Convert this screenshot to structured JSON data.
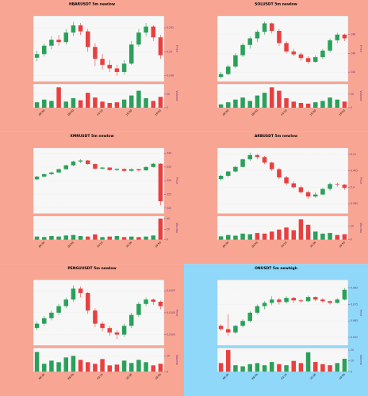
{
  "chart_data": [
    {
      "type": "candlestick",
      "title": "HBARUSDT 5m newlow",
      "ylabel": "Price",
      "y2label": "Volume",
      "background": "#f8a593",
      "up_color": "#2ca05a",
      "down_color": "#e8403f",
      "grid": true,
      "categories": [
        null,
        "09:30",
        null,
        null,
        null,
        "09:50",
        null,
        null,
        null,
        "10:10",
        null,
        null,
        null,
        "10:30",
        null,
        null,
        null,
        "10:50"
      ],
      "candles": [
        [
          0.2495,
          0.2501,
          0.2492,
          0.2498
        ],
        [
          0.2498,
          0.2507,
          0.2496,
          0.2505
        ],
        [
          0.2505,
          0.2513,
          0.2502,
          0.251
        ],
        [
          0.251,
          0.2514,
          0.2505,
          0.2508
        ],
        [
          0.2508,
          0.2519,
          0.2506,
          0.2516
        ],
        [
          0.2516,
          0.2525,
          0.2513,
          0.2522
        ],
        [
          0.2522,
          0.2524,
          0.2514,
          0.2517
        ],
        [
          0.2517,
          0.2519,
          0.25,
          0.2504
        ],
        [
          0.2504,
          0.2507,
          0.2488,
          0.2494
        ],
        [
          0.2494,
          0.2498,
          0.2485,
          0.2489
        ],
        [
          0.2489,
          0.2493,
          0.2483,
          0.2486
        ],
        [
          0.2486,
          0.2489,
          0.248,
          0.2483
        ],
        [
          0.2483,
          0.2493,
          0.2481,
          0.249
        ],
        [
          0.249,
          0.2509,
          0.2489,
          0.2506
        ],
        [
          0.2506,
          0.2519,
          0.2504,
          0.2516
        ],
        [
          0.2516,
          0.2524,
          0.2513,
          0.2521
        ],
        [
          0.2521,
          0.2522,
          0.2509,
          0.2512
        ],
        [
          0.2512,
          0.2514,
          0.2494,
          0.2497
        ]
      ],
      "volume": [
        8,
        12,
        10,
        30,
        9,
        14,
        11,
        22,
        15,
        9,
        7,
        8,
        12,
        18,
        25,
        14,
        10,
        16
      ],
      "ylim": [
        0.2475,
        0.253
      ],
      "yticks": [
        0.248,
        0.25,
        0.252
      ],
      "y2lim": [
        0,
        35
      ],
      "y2ticks": [
        0,
        20
      ]
    },
    {
      "type": "candlestick",
      "title": "SOLUSDT 5m newlow",
      "ylabel": "Price",
      "y2label": "Volume",
      "background": "#f8a593",
      "up_color": "#2ca05a",
      "down_color": "#e8403f",
      "grid": true,
      "categories": [
        null,
        "09:30",
        null,
        null,
        null,
        "09:50",
        null,
        null,
        null,
        "10:10",
        null,
        null,
        null,
        "10:30",
        null,
        null,
        null,
        "10:50"
      ],
      "candles": [
        [
          143.5,
          144.0,
          143.3,
          143.8
        ],
        [
          143.8,
          144.8,
          143.7,
          144.6
        ],
        [
          144.6,
          146.0,
          144.4,
          145.8
        ],
        [
          145.8,
          147.1,
          145.6,
          146.9
        ],
        [
          146.9,
          147.8,
          146.5,
          147.6
        ],
        [
          147.6,
          148.5,
          147.2,
          148.3
        ],
        [
          148.3,
          149.4,
          148.0,
          149.2
        ],
        [
          149.2,
          149.3,
          148.1,
          148.4
        ],
        [
          148.4,
          148.6,
          146.8,
          147.1
        ],
        [
          147.1,
          147.3,
          146.0,
          146.2
        ],
        [
          146.2,
          146.5,
          145.7,
          145.9
        ],
        [
          145.9,
          146.1,
          145.2,
          145.5
        ],
        [
          145.5,
          145.7,
          144.9,
          145.1
        ],
        [
          145.1,
          145.8,
          145.0,
          145.6
        ],
        [
          145.6,
          146.5,
          145.4,
          146.3
        ],
        [
          146.3,
          147.6,
          146.1,
          147.4
        ],
        [
          147.4,
          148.2,
          147.1,
          148.0
        ],
        [
          148.0,
          148.1,
          147.3,
          147.6
        ]
      ],
      "volume": [
        5,
        8,
        12,
        15,
        10,
        18,
        22,
        30,
        25,
        14,
        9,
        7,
        6,
        8,
        10,
        15,
        12,
        9
      ],
      "ylim": [
        143,
        150
      ],
      "yticks": [
        144,
        146,
        148
      ],
      "y2lim": [
        0,
        35
      ],
      "y2ticks": [
        0,
        20
      ]
    },
    {
      "type": "candlestick",
      "title": "XMRUSDT 5m newlow",
      "ylabel": "Price",
      "y2label": "Volume",
      "background": "#f8a593",
      "up_color": "#2ca05a",
      "down_color": "#e8403f",
      "grid": true,
      "categories": [
        null,
        "09:30",
        null,
        null,
        null,
        "09:50",
        null,
        null,
        null,
        "10:10",
        null,
        null,
        null,
        "10:30",
        null,
        null,
        null,
        "10:50"
      ],
      "candles": [
        [
          330.5,
          331.8,
          330.2,
          331.5
        ],
        [
          331.5,
          332.6,
          331.2,
          332.4
        ],
        [
          332.4,
          333.3,
          332.0,
          333.0
        ],
        [
          333.0,
          334.5,
          332.8,
          334.2
        ],
        [
          334.2,
          335.9,
          334.0,
          335.6
        ],
        [
          335.6,
          337.3,
          335.3,
          337.0
        ],
        [
          337.0,
          337.9,
          336.5,
          337.4
        ],
        [
          337.4,
          337.6,
          335.8,
          336.1
        ],
        [
          336.1,
          336.3,
          334.1,
          334.4
        ],
        [
          334.4,
          335.1,
          334.0,
          334.8
        ],
        [
          334.8,
          335.0,
          333.6,
          333.9
        ],
        [
          333.9,
          334.6,
          333.5,
          334.3
        ],
        [
          334.3,
          334.5,
          333.2,
          333.6
        ],
        [
          333.6,
          334.5,
          333.3,
          334.2
        ],
        [
          334.2,
          334.4,
          333.4,
          333.8
        ],
        [
          333.8,
          335.3,
          333.6,
          335.0
        ],
        [
          335.0,
          336.5,
          334.8,
          336.2
        ],
        [
          336.2,
          336.4,
          321.0,
          322.5
        ]
      ],
      "volume": [
        6,
        5,
        7,
        6,
        8,
        9,
        7,
        6,
        10,
        5,
        6,
        7,
        5,
        6,
        5,
        6,
        8,
        40
      ],
      "ylim": [
        318,
        342
      ],
      "yticks": [
        320,
        325,
        330,
        335,
        340
      ],
      "y2lim": [
        0,
        45
      ],
      "y2ticks": [
        0,
        20,
        40
      ]
    },
    {
      "type": "candlestick",
      "title": "ARBUSDT 5m newlow",
      "ylabel": "Price",
      "y2label": "Volume",
      "background": "#f8a593",
      "up_color": "#2ca05a",
      "down_color": "#e8403f",
      "grid": true,
      "categories": [
        null,
        "09:30",
        null,
        null,
        null,
        "09:50",
        null,
        null,
        null,
        "10:10",
        null,
        null,
        null,
        "10:30",
        null,
        null,
        null,
        "10:50"
      ],
      "candles": [
        [
          0.4025,
          0.4038,
          0.402,
          0.4035
        ],
        [
          0.4035,
          0.405,
          0.403,
          0.4048
        ],
        [
          0.4048,
          0.4065,
          0.4045,
          0.4062
        ],
        [
          0.4062,
          0.4088,
          0.406,
          0.4085
        ],
        [
          0.4085,
          0.4105,
          0.408,
          0.4098
        ],
        [
          0.4098,
          0.4101,
          0.4085,
          0.4092
        ],
        [
          0.4092,
          0.4095,
          0.407,
          0.4075
        ],
        [
          0.4075,
          0.4078,
          0.405,
          0.4055
        ],
        [
          0.4055,
          0.406,
          0.4025,
          0.403
        ],
        [
          0.403,
          0.4035,
          0.4005,
          0.4012
        ],
        [
          0.4012,
          0.4018,
          0.3995,
          0.4
        ],
        [
          0.4,
          0.4004,
          0.398,
          0.3985
        ],
        [
          0.3985,
          0.399,
          0.3965,
          0.3972
        ],
        [
          0.3972,
          0.3985,
          0.3968,
          0.3978
        ],
        [
          0.3978,
          0.3998,
          0.3975,
          0.3995
        ],
        [
          0.3995,
          0.4015,
          0.399,
          0.401
        ],
        [
          0.401,
          0.4014,
          0.4002,
          0.4008
        ],
        [
          0.4008,
          0.401,
          0.3992,
          0.3998
        ]
      ],
      "volume": [
        5,
        7,
        6,
        9,
        8,
        10,
        9,
        12,
        15,
        18,
        14,
        30,
        22,
        12,
        9,
        10,
        7,
        8
      ],
      "ylim": [
        0.392,
        0.412
      ],
      "yticks": [
        0.395,
        0.4,
        0.405,
        0.41
      ],
      "y2lim": [
        0,
        35
      ],
      "y2ticks": [
        0,
        20
      ]
    },
    {
      "type": "candlestick",
      "title": "PENGUUSDT 5m newlow",
      "ylabel": "Price",
      "y2label": "Volume",
      "background": "#f8a593",
      "up_color": "#2ca05a",
      "down_color": "#e8403f",
      "grid": true,
      "categories": [
        null,
        "09:30",
        null,
        null,
        null,
        "09:50",
        null,
        null,
        null,
        "10:10",
        null,
        null,
        null,
        "10:30",
        null,
        null,
        null,
        "10:50"
      ],
      "candles": [
        [
          0.01036,
          0.01042,
          0.01034,
          0.0104
        ],
        [
          0.0104,
          0.01047,
          0.01038,
          0.01045
        ],
        [
          0.01045,
          0.01052,
          0.01043,
          0.0105
        ],
        [
          0.0105,
          0.01058,
          0.01048,
          0.01056
        ],
        [
          0.01056,
          0.01064,
          0.01054,
          0.01062
        ],
        [
          0.01062,
          0.01075,
          0.0106,
          0.01072
        ],
        [
          0.01072,
          0.01074,
          0.01064,
          0.01068
        ],
        [
          0.01068,
          0.01069,
          0.01049,
          0.01052
        ],
        [
          0.01052,
          0.01054,
          0.01037,
          0.0104
        ],
        [
          0.0104,
          0.01042,
          0.01033,
          0.01036
        ],
        [
          0.01036,
          0.01038,
          0.01029,
          0.01032
        ],
        [
          0.01032,
          0.01034,
          0.01026,
          0.0103
        ],
        [
          0.0103,
          0.0104,
          0.01028,
          0.01038
        ],
        [
          0.01038,
          0.0105,
          0.01036,
          0.01048
        ],
        [
          0.01048,
          0.0106,
          0.01046,
          0.01058
        ],
        [
          0.01058,
          0.01064,
          0.01056,
          0.01062
        ],
        [
          0.01062,
          0.01063,
          0.01057,
          0.0106
        ],
        [
          0.0106,
          0.01061,
          0.01053,
          0.01056
        ]
      ],
      "volume": [
        25,
        10,
        14,
        12,
        18,
        20,
        15,
        12,
        10,
        16,
        8,
        9,
        14,
        11,
        15,
        12,
        8,
        10
      ],
      "ylim": [
        0.0102,
        0.0108
      ],
      "yticks": [
        0.0103,
        0.0105,
        0.0107
      ],
      "y2lim": [
        0,
        30
      ],
      "y2ticks": [
        0,
        20
      ]
    },
    {
      "type": "candlestick",
      "title": "ONUSDT 5m newhigh",
      "ylabel": "Price",
      "y2label": "Volume",
      "background": "#8fd8f9",
      "up_color": "#2ca05a",
      "down_color": "#e8403f",
      "grid": true,
      "categories": [
        null,
        "09:30",
        null,
        null,
        null,
        "09:50",
        null,
        null,
        null,
        "10:10",
        null,
        null,
        null,
        "10:30",
        null,
        null,
        null,
        "10:50"
      ],
      "candles": [
        [
          0.962,
          0.963,
          0.959,
          0.96
        ],
        [
          0.96,
          0.969,
          0.956,
          0.958
        ],
        [
          0.958,
          0.9625,
          0.957,
          0.962
        ],
        [
          0.962,
          0.966,
          0.961,
          0.965
        ],
        [
          0.965,
          0.971,
          0.964,
          0.97
        ],
        [
          0.97,
          0.975,
          0.969,
          0.974
        ],
        [
          0.974,
          0.977,
          0.972,
          0.976
        ],
        [
          0.976,
          0.98,
          0.9745,
          0.978
        ],
        [
          0.978,
          0.979,
          0.975,
          0.9765
        ],
        [
          0.9765,
          0.98,
          0.9755,
          0.979
        ],
        [
          0.979,
          0.9795,
          0.976,
          0.9775
        ],
        [
          0.9775,
          0.9785,
          0.976,
          0.977
        ],
        [
          0.977,
          0.9805,
          0.9765,
          0.9795
        ],
        [
          0.9795,
          0.98,
          0.977,
          0.978
        ],
        [
          0.978,
          0.979,
          0.976,
          0.977
        ],
        [
          0.977,
          0.9775,
          0.975,
          0.976
        ],
        [
          0.976,
          0.979,
          0.9755,
          0.978
        ],
        [
          0.978,
          0.985,
          0.9775,
          0.984
        ]
      ],
      "volume": [
        8,
        20,
        6,
        5,
        7,
        8,
        6,
        9,
        7,
        6,
        10,
        8,
        18,
        9,
        7,
        6,
        8,
        12
      ],
      "ylim": [
        0.95,
        0.99
      ],
      "yticks": [
        0.955,
        0.965,
        0.975,
        0.985
      ],
      "y2lim": [
        0,
        22
      ],
      "y2ticks": [
        0,
        10,
        20
      ]
    }
  ]
}
